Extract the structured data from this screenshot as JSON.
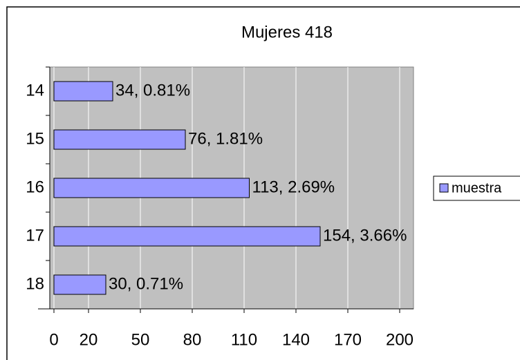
{
  "chart_data": {
    "type": "barh",
    "title": "Mujeres 418",
    "categories": [
      "14",
      "15",
      "16",
      "17",
      "18"
    ],
    "series": [
      {
        "name": "muestra",
        "color": "#9999ff",
        "values": [
          34,
          76,
          113,
          154,
          30
        ],
        "value_labels": [
          "34, 0.81%",
          "76, 1.81%",
          "113, 2.69%",
          "154, 3.66%",
          "30, 0.71%"
        ]
      }
    ],
    "xlim": [
      -2.4,
      208
    ],
    "xticks": [
      0,
      20,
      50,
      80,
      110,
      140,
      170,
      200
    ],
    "grid": true,
    "legend": "right",
    "plot_background": "#c0c0c0"
  }
}
